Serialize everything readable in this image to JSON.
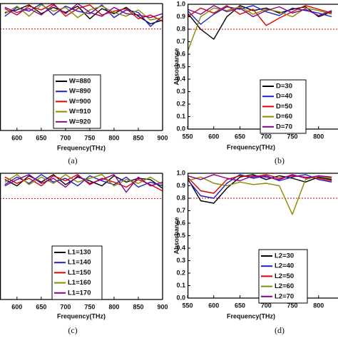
{
  "chart_data": [
    {
      "type": "line",
      "label": "(a)",
      "xlabel": "Frequency(THz)",
      "x": [
        575,
        600,
        625,
        650,
        675,
        700,
        725,
        750,
        775,
        800,
        825,
        850,
        875,
        900
      ],
      "xlim": [
        565,
        900
      ],
      "xticks": [
        600,
        650,
        700,
        750,
        800,
        850,
        900
      ],
      "ylim": [
        0,
        1
      ],
      "threshold": 0.8,
      "legend": "lower right",
      "series": [
        {
          "name": "W=880",
          "color": "#000000",
          "values": [
            0.93,
            0.95,
            0.99,
            0.92,
            0.97,
            0.93,
            0.98,
            0.88,
            0.96,
            0.92,
            0.97,
            0.9,
            0.84,
            0.87
          ]
        },
        {
          "name": "W=890",
          "color": "#1f1fd0",
          "values": [
            0.9,
            0.97,
            0.94,
            1.0,
            0.91,
            0.98,
            0.94,
            0.92,
            0.99,
            0.89,
            0.95,
            0.93,
            0.82,
            0.9
          ]
        },
        {
          "name": "W=900",
          "color": "#e00000",
          "values": [
            0.96,
            0.91,
            0.98,
            0.95,
            1.0,
            0.9,
            0.96,
            0.99,
            0.91,
            0.94,
            0.96,
            0.88,
            0.91,
            0.86
          ]
        },
        {
          "name": "W=910",
          "color": "#8a8a00",
          "values": [
            0.92,
            0.98,
            0.9,
            0.99,
            0.94,
            0.97,
            0.89,
            0.95,
            0.98,
            0.93,
            0.9,
            0.95,
            0.87,
            0.89
          ]
        },
        {
          "name": "W=920",
          "color": "#8b008b",
          "values": [
            0.97,
            0.93,
            0.96,
            0.91,
            0.99,
            0.92,
            1.0,
            0.93,
            0.9,
            0.97,
            0.92,
            0.91,
            0.89,
            0.92
          ]
        }
      ]
    },
    {
      "type": "line",
      "label": "(b)",
      "xlabel": "Frequency(THz)",
      "ylabel": "Absorbance",
      "x": [
        550,
        575,
        600,
        625,
        650,
        675,
        700,
        725,
        750,
        775,
        800,
        825
      ],
      "xlim": [
        550,
        837
      ],
      "xticks": [
        550,
        600,
        650,
        700,
        750,
        800
      ],
      "ylim": [
        0,
        1
      ],
      "yticks": [
        {
          "value": 0,
          "label": "0.0"
        },
        0.1,
        0.2,
        0.3,
        0.4,
        0.5,
        0.6,
        0.7,
        0.8,
        0.9,
        {
          "value": 1,
          "label": "1.0"
        }
      ],
      "threshold": 0.8,
      "legend": "lower right",
      "series": [
        {
          "name": "D=30",
          "color": "#000000",
          "values": [
            0.93,
            0.8,
            0.72,
            0.9,
            0.99,
            0.95,
            0.97,
            0.93,
            0.96,
            0.98,
            0.9,
            0.94
          ]
        },
        {
          "name": "D=40",
          "color": "#1f1fd0",
          "values": [
            0.95,
            0.84,
            0.92,
            0.98,
            0.96,
            0.99,
            0.94,
            0.91,
            0.97,
            0.95,
            0.93,
            0.9
          ]
        },
        {
          "name": "D=50",
          "color": "#e00000",
          "values": [
            0.9,
            0.97,
            0.93,
            0.99,
            0.92,
            0.96,
            0.83,
            0.89,
            0.94,
            0.99,
            0.96,
            0.93
          ]
        },
        {
          "name": "D=60",
          "color": "#8a8a00",
          "values": [
            0.62,
            0.9,
            0.97,
            0.95,
            0.98,
            0.92,
            0.96,
            0.94,
            0.9,
            0.97,
            0.95,
            0.92
          ]
        },
        {
          "name": "D=70",
          "color": "#8b008b",
          "values": [
            0.96,
            0.92,
            0.99,
            0.94,
            0.97,
            0.9,
            0.95,
            0.98,
            0.93,
            0.96,
            0.91,
            0.95
          ]
        }
      ]
    },
    {
      "type": "line",
      "label": "(c)",
      "xlabel": "Frequency(THz)",
      "x": [
        575,
        600,
        625,
        650,
        675,
        700,
        725,
        750,
        775,
        800,
        825,
        850,
        875,
        900
      ],
      "xlim": [
        565,
        900
      ],
      "xticks": [
        600,
        650,
        700,
        750,
        800,
        850,
        900
      ],
      "ylim": [
        0,
        1
      ],
      "threshold": 0.8,
      "legend": "lower right",
      "series": [
        {
          "name": "L1=130",
          "color": "#000000",
          "values": [
            0.95,
            0.9,
            0.98,
            0.93,
            0.99,
            0.91,
            0.97,
            0.94,
            0.9,
            0.98,
            0.93,
            0.96,
            0.95,
            0.88
          ]
        },
        {
          "name": "L1=140",
          "color": "#1f1fd0",
          "values": [
            0.91,
            0.97,
            0.92,
            0.99,
            0.93,
            0.96,
            0.9,
            0.98,
            0.94,
            0.91,
            0.97,
            0.89,
            0.93,
            0.9
          ]
        },
        {
          "name": "L1=150",
          "color": "#e00000",
          "values": [
            0.97,
            0.92,
            0.96,
            0.9,
            0.98,
            0.94,
            0.99,
            0.91,
            0.96,
            0.93,
            0.89,
            0.95,
            0.91,
            0.86
          ]
        },
        {
          "name": "L1=160",
          "color": "#8a8a00",
          "values": [
            0.93,
            0.99,
            0.91,
            0.97,
            0.92,
            0.99,
            0.93,
            0.96,
            0.99,
            0.9,
            0.95,
            0.92,
            0.97,
            0.91
          ]
        },
        {
          "name": "L1=170",
          "color": "#8b008b",
          "values": [
            0.9,
            0.95,
            0.99,
            0.92,
            0.96,
            0.89,
            0.98,
            0.92,
            0.95,
            0.99,
            0.85,
            0.97,
            0.9,
            0.93
          ]
        }
      ]
    },
    {
      "type": "line",
      "label": "(d)",
      "xlabel": "Frequency(THz)",
      "ylabel": "Absorbance",
      "x": [
        550,
        575,
        600,
        625,
        650,
        675,
        700,
        725,
        750,
        775,
        800,
        825
      ],
      "xlim": [
        550,
        837
      ],
      "xticks": [
        550,
        600,
        650,
        700,
        750,
        800
      ],
      "ylim": [
        0,
        1
      ],
      "yticks": [
        {
          "value": 0,
          "label": "0.0"
        },
        0.1,
        0.2,
        0.3,
        0.4,
        0.5,
        0.6,
        0.7,
        0.8,
        0.9,
        {
          "value": 1,
          "label": "1.0"
        }
      ],
      "threshold": 0.8,
      "legend": "lower right",
      "series": [
        {
          "name": "L2=30",
          "color": "#000000",
          "values": [
            0.96,
            0.78,
            0.76,
            0.88,
            0.97,
            0.99,
            0.95,
            0.98,
            0.96,
            0.93,
            0.97,
            0.95
          ]
        },
        {
          "name": "L2=40",
          "color": "#1f1fd0",
          "values": [
            0.95,
            0.82,
            0.8,
            0.92,
            0.99,
            0.96,
            0.98,
            0.94,
            0.97,
            0.99,
            0.95,
            0.93
          ]
        },
        {
          "name": "L2=50",
          "color": "#e00000",
          "values": [
            0.97,
            0.86,
            0.84,
            0.95,
            0.98,
            0.97,
            0.99,
            0.96,
            0.98,
            0.97,
            0.96,
            0.94
          ]
        },
        {
          "name": "L2=60",
          "color": "#8a8a00",
          "values": [
            0.94,
            0.97,
            0.92,
            0.9,
            0.93,
            0.91,
            0.92,
            0.9,
            0.67,
            0.95,
            0.98,
            0.96
          ]
        },
        {
          "name": "L2=70",
          "color": "#8b008b",
          "values": [
            0.98,
            0.95,
            0.99,
            0.96,
            0.94,
            0.98,
            0.97,
            0.95,
            0.99,
            0.96,
            0.98,
            0.97
          ]
        }
      ]
    }
  ]
}
